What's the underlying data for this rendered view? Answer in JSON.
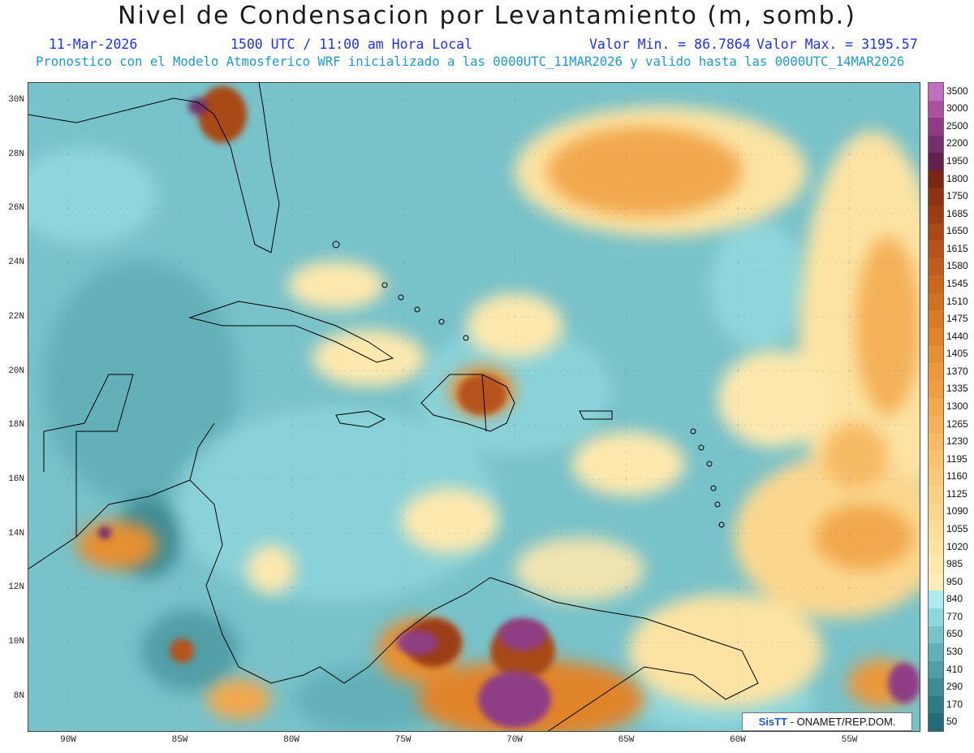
{
  "header": {
    "title": "Nivel de Condensacion por Levantamiento (m, somb.)",
    "date": "11-Mar-2026",
    "time": "1500 UTC / 11:00 am Hora Local",
    "value_min": "Valor Min. = 86.7864",
    "value_max": "Valor Max. = 3195.57",
    "model_line": "Pronostico con el Modelo Atmosferico WRF inicializado a las 0000UTC_11MAR2026 y valido hasta las  0000UTC_14MAR2026"
  },
  "axes": {
    "lat_labels": [
      "30N",
      "28N",
      "26N",
      "24N",
      "22N",
      "20N",
      "18N",
      "16N",
      "14N",
      "12N",
      "10N",
      "8N"
    ],
    "lon_labels": [
      "90W",
      "85W",
      "80W",
      "75W",
      "70W",
      "65W",
      "60W",
      "55W"
    ]
  },
  "colorbar": {
    "labels": [
      "3500",
      "3000",
      "2500",
      "2200",
      "1950",
      "1800",
      "1750",
      "1685",
      "1650",
      "1615",
      "1580",
      "1545",
      "1510",
      "1475",
      "1440",
      "1405",
      "1370",
      "1335",
      "1300",
      "1265",
      "1230",
      "1195",
      "1160",
      "1125",
      "1090",
      "1055",
      "1020",
      "985",
      "950",
      "840",
      "770",
      "650",
      "530",
      "410",
      "290",
      "170",
      "50"
    ],
    "colors": [
      "#c071bd",
      "#a9539f",
      "#8f3e84",
      "#762f6b",
      "#62204f",
      "#7a2612",
      "#8d3312",
      "#9b3d13",
      "#a84917",
      "#b5531a",
      "#c05d1c",
      "#c9661f",
      "#d27022",
      "#da7a26",
      "#e0842b",
      "#e68f33",
      "#eb993c",
      "#ef9f43",
      "#f2a84d",
      "#f4b159",
      "#f6ba65",
      "#f8c26f",
      "#f9c97a",
      "#fad084",
      "#fbd78e",
      "#fbdd99",
      "#fce3a3",
      "#fde8ad",
      "#fdedb7",
      "#acebef",
      "#8fd6dc",
      "#78c2ca",
      "#63b0b8",
      "#519ea7",
      "#3f8c95",
      "#307c86",
      "#236c77"
    ]
  },
  "credit": {
    "brand": "SisTT",
    "text": "- ONAMET/REP.DOM."
  },
  "colors": {
    "title": "#1a1a1a",
    "subtitle_blue": "#2030ff",
    "subtitle_cyan": "#1a9ad6",
    "ocean_base": "#78c2ca"
  }
}
